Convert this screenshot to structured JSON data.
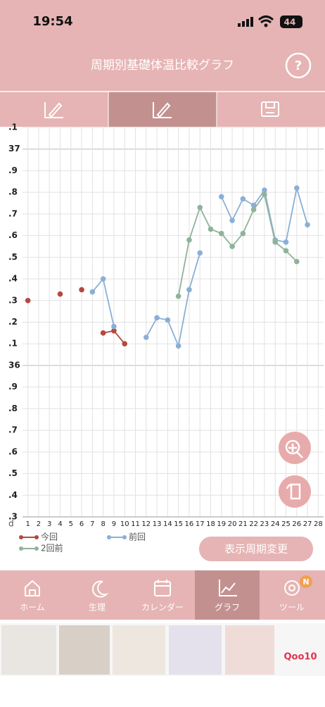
{
  "status": {
    "time": "19:54",
    "battery": "44"
  },
  "header": {
    "title": "周期別基礎体温比較グラフ",
    "help": "?"
  },
  "chart_data": {
    "type": "line",
    "xlabel": "d",
    "x": [
      1,
      2,
      3,
      4,
      5,
      6,
      7,
      8,
      9,
      10,
      11,
      12,
      13,
      14,
      15,
      16,
      17,
      18,
      19,
      20,
      21,
      22,
      23,
      24,
      25,
      26,
      27,
      28
    ],
    "xlim": [
      0.5,
      28.5
    ],
    "ylim": [
      35.3,
      37.1
    ],
    "yticks": [
      {
        "value": 37.1,
        "label": ".1"
      },
      37,
      {
        "value": 36.9,
        "label": ".9"
      },
      {
        "value": 36.8,
        "label": ".8"
      },
      {
        "value": 36.7,
        "label": ".7"
      },
      {
        "value": 36.6,
        "label": ".6"
      },
      {
        "value": 36.5,
        "label": ".5"
      },
      {
        "value": 36.4,
        "label": ".4"
      },
      {
        "value": 36.3,
        "label": ".3"
      },
      {
        "value": 36.2,
        "label": ".2"
      },
      {
        "value": 36.1,
        "label": ".1"
      },
      36,
      {
        "value": 35.9,
        "label": ".9"
      },
      {
        "value": 35.8,
        "label": ".8"
      },
      {
        "value": 35.7,
        "label": ".7"
      },
      {
        "value": 35.6,
        "label": ".6"
      },
      {
        "value": 35.5,
        "label": ".5"
      },
      {
        "value": 35.4,
        "label": ".4"
      },
      {
        "value": 35.3,
        "label": ".3"
      }
    ],
    "grid": true,
    "series": [
      {
        "name": "今回",
        "color": "#b5483f",
        "values": [
          36.3,
          null,
          null,
          36.33,
          null,
          36.35,
          null,
          36.15,
          36.16,
          36.1,
          null,
          null,
          null,
          null,
          null,
          null,
          null,
          null,
          null,
          null,
          null,
          null,
          null,
          null,
          null,
          null,
          null,
          null
        ]
      },
      {
        "name": "前回",
        "color": "#8aafd6",
        "values": [
          null,
          null,
          null,
          null,
          null,
          null,
          36.34,
          36.4,
          36.18,
          null,
          null,
          36.13,
          36.22,
          36.21,
          36.09,
          36.35,
          36.52,
          null,
          36.78,
          36.67,
          36.77,
          36.74,
          36.81,
          36.58,
          36.57,
          36.82,
          36.65,
          null
        ]
      },
      {
        "name": "2回前",
        "color": "#8fb39a",
        "values": [
          null,
          null,
          null,
          null,
          null,
          null,
          null,
          null,
          null,
          null,
          null,
          null,
          null,
          null,
          36.32,
          36.58,
          36.73,
          36.63,
          36.61,
          36.55,
          36.61,
          36.72,
          36.79,
          36.57,
          36.53,
          36.48,
          null,
          null
        ]
      }
    ]
  },
  "button": {
    "label": "表示周期変更"
  },
  "nav": {
    "items": [
      {
        "label": "ホーム"
      },
      {
        "label": "生理"
      },
      {
        "label": "カレンダー"
      },
      {
        "label": "グラフ"
      },
      {
        "label": "ツール"
      }
    ],
    "badge": "N"
  },
  "ads": {
    "brand": "Qoo10"
  }
}
